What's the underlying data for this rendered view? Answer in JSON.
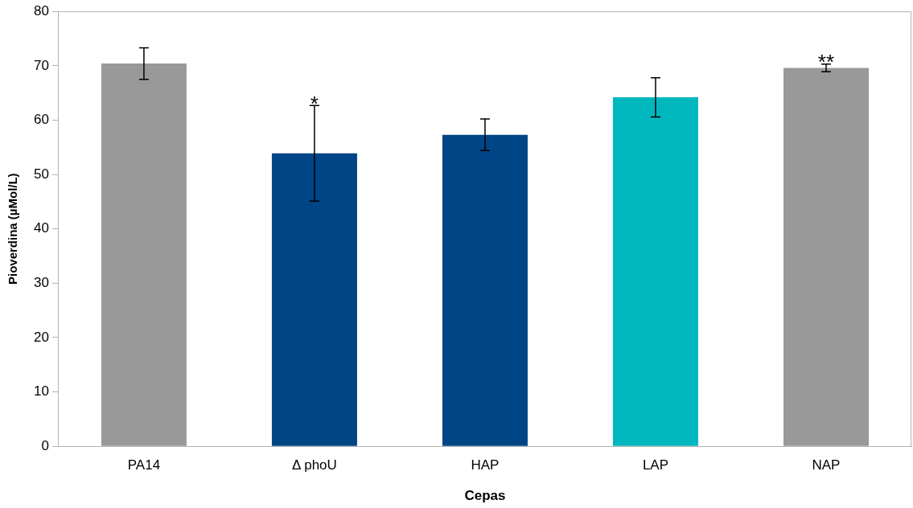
{
  "chart_data": {
    "type": "bar",
    "xlabel": "Cepas",
    "ylabel": "Pioverdina (µMol/L)",
    "categories": [
      "PA14",
      "Δ phoU",
      "HAP",
      "LAP",
      "NAP"
    ],
    "values": [
      70.4,
      53.9,
      57.3,
      64.2,
      69.6
    ],
    "colors": [
      "#999999",
      "#004586",
      "#004586",
      "#00b7bd",
      "#999999"
    ],
    "errors": [
      2.9,
      8.8,
      2.9,
      3.6,
      0.7
    ],
    "ylim": [
      0,
      80
    ],
    "yticks": [
      0,
      10,
      20,
      30,
      40,
      50,
      60,
      70,
      80
    ],
    "grid": false,
    "legend": false,
    "annotations": [
      {
        "text": "*",
        "x": "Δ phoU",
        "y": 62.6
      },
      {
        "text": "**",
        "x": "NAP",
        "y": 70.3
      }
    ]
  }
}
